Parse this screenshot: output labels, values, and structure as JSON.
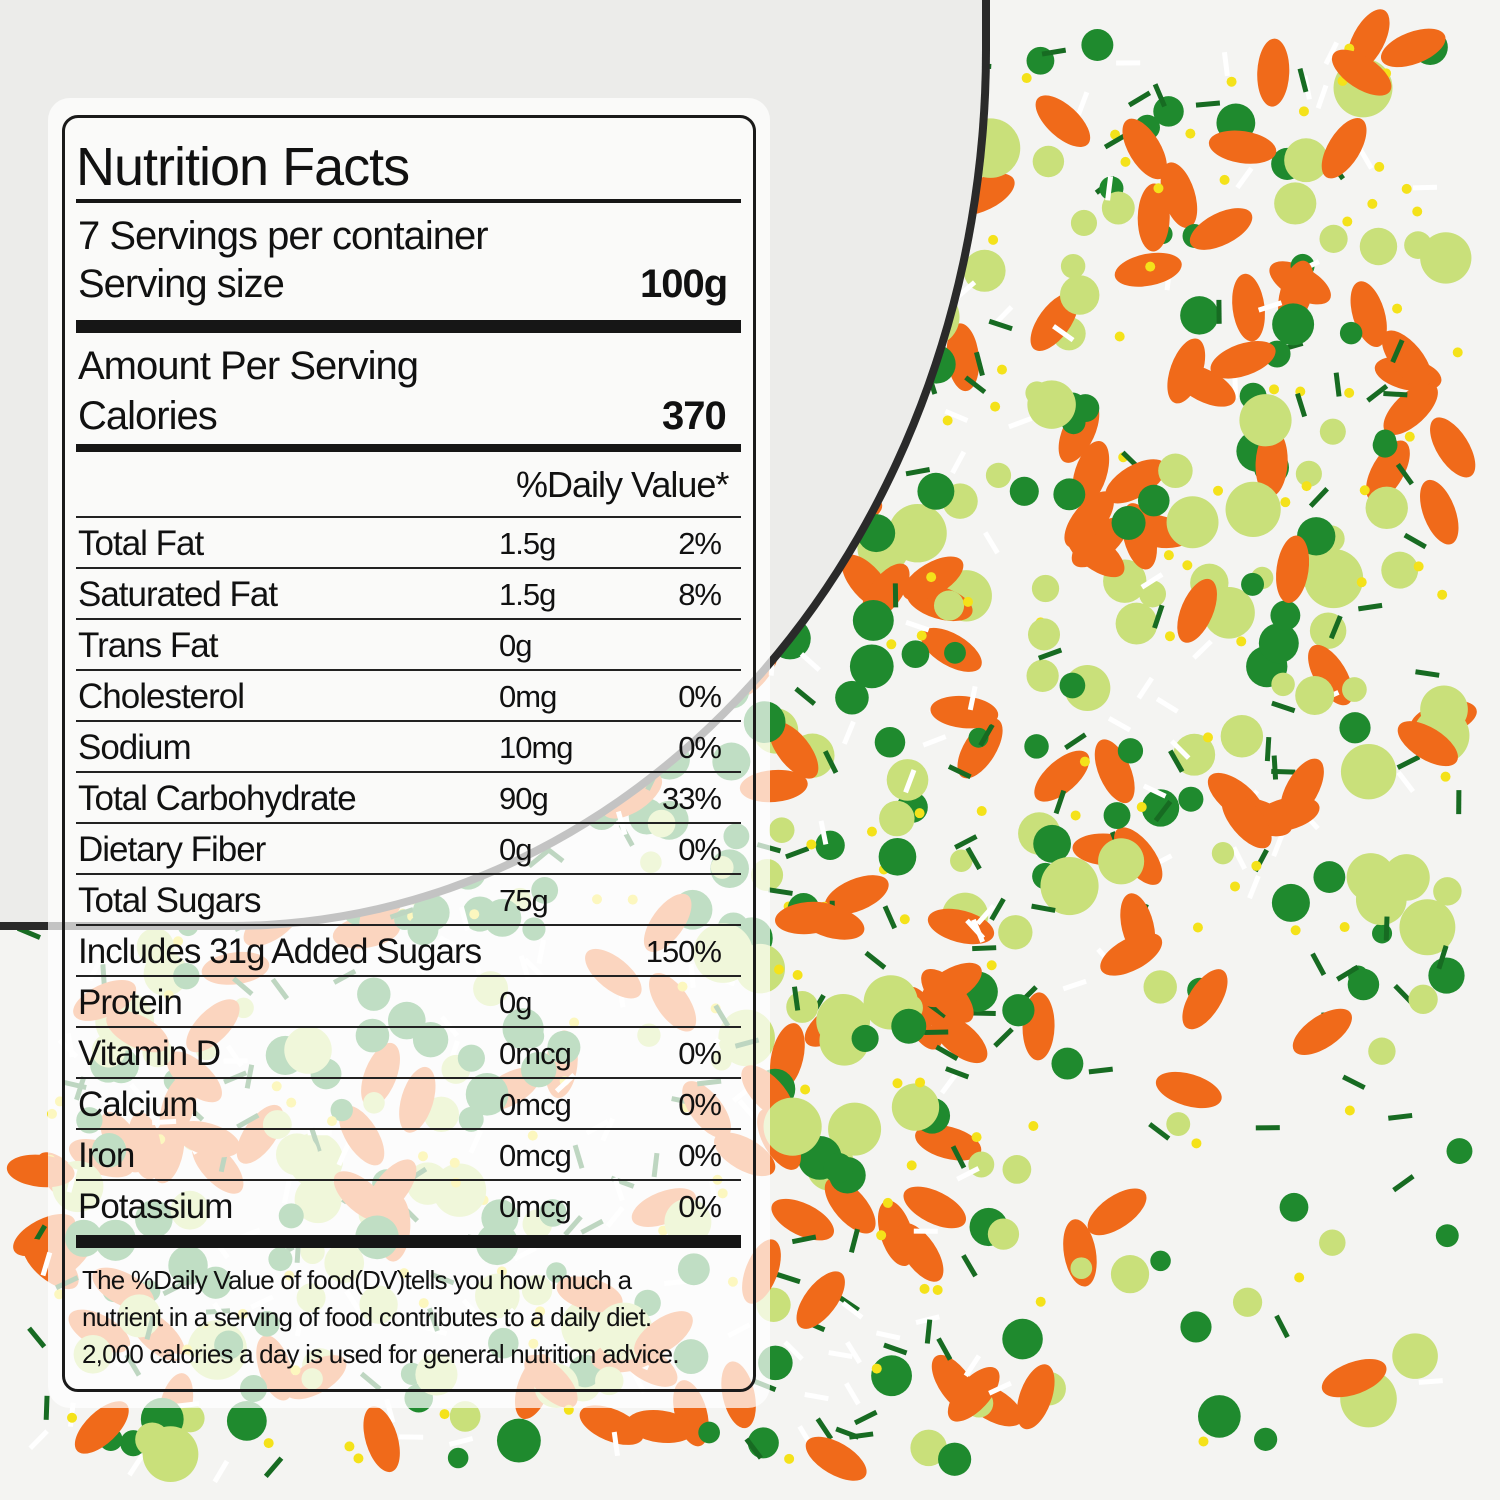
{
  "colors": {
    "sprinkle_green": "#1f8a2e",
    "sprinkle_dark_green": "#176b22",
    "sprinkle_light_green": "#c9e07a",
    "sprinkle_yellow": "#f4e21a",
    "sprinkle_orange": "#f06a1a",
    "sprinkle_white": "#ffffff"
  },
  "label": {
    "title": "Nutrition Facts",
    "servings": "7 Servings per container",
    "serving_size_label": "Serving size",
    "serving_size_value": "100g",
    "amount_per_serving": "Amount Per Serving",
    "calories_label": "Calories",
    "calories_value": "370",
    "daily_value_header": "%Daily Value*",
    "rows": [
      {
        "name": "Total Fat",
        "amount": "1.5g",
        "dv": "2%"
      },
      {
        "name": "Saturated Fat",
        "amount": "1.5g",
        "dv": "8%"
      },
      {
        "name": "Trans Fat",
        "amount": "0g",
        "dv": ""
      },
      {
        "name": "Cholesterol",
        "amount": "0mg",
        "dv": "0%"
      },
      {
        "name": "Sodium",
        "amount": "10mg",
        "dv": "0%"
      },
      {
        "name": "Total Carbohydrate",
        "amount": "90g",
        "dv": "33%"
      },
      {
        "name": "Dietary Fiber",
        "amount": "0g",
        "dv": "0%"
      },
      {
        "name": "Total Sugars",
        "amount": "75g",
        "dv": ""
      },
      {
        "name": "Includes 31g Added Sugars",
        "amount": "",
        "dv": "150%"
      },
      {
        "name": "Protein",
        "amount": "0g",
        "dv": ""
      },
      {
        "name": "Vitamin D",
        "amount": "0mcg",
        "dv": "0%"
      },
      {
        "name": "Calcium",
        "amount": "0mcg",
        "dv": "0%"
      },
      {
        "name": "Iron",
        "amount": "0mcg",
        "dv": "0%"
      },
      {
        "name": "Potassium",
        "amount": "0mcg",
        "dv": "0%"
      }
    ],
    "footnote": [
      "The %Daily Value of food(DV)tells you how much a",
      "nutrient in a serving of food contributes to a daily diet.",
      "2,000 calories a day is used for general nutrition advice."
    ]
  }
}
